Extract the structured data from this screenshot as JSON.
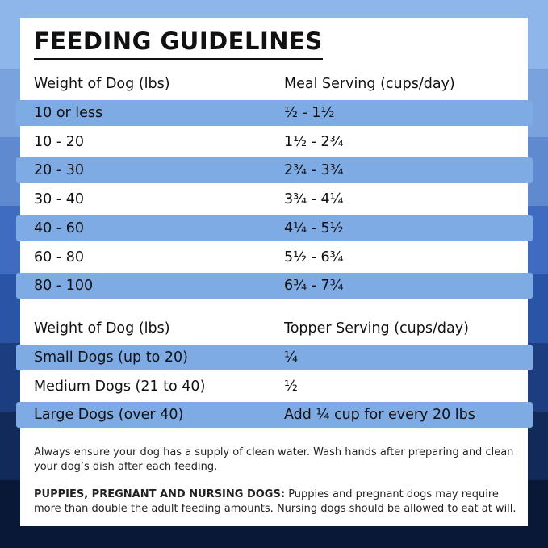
{
  "title": "FEEDING GUIDELINES",
  "meal_table": {
    "headers": [
      "Weight of Dog (lbs)",
      "Meal Serving (cups/day)"
    ],
    "rows": [
      [
        "10 or less",
        "½ - 1½"
      ],
      [
        "10 - 20",
        "1½ - 2¾"
      ],
      [
        "20 - 30",
        "2¾ - 3¾"
      ],
      [
        "30 - 40",
        "3¾ - 4¼"
      ],
      [
        "40 - 60",
        "4¼ - 5½"
      ],
      [
        "60 - 80",
        "5½ - 6¾"
      ],
      [
        "80 - 100",
        "6¾ - 7¾"
      ]
    ]
  },
  "topper_table": {
    "headers": [
      "Weight of Dog (lbs)",
      "Topper Serving (cups/day)"
    ],
    "rows": [
      [
        "Small Dogs (up to 20)",
        "¼"
      ],
      [
        "Medium Dogs (21 to 40)",
        "½"
      ],
      [
        "Large Dogs (over 40)",
        "Add ¼ cup for every 20 lbs"
      ]
    ]
  },
  "note": "Always ensure your dog has a supply of clean water. Wash hands after preparing and clean your dog’s dish after each feeding.",
  "puppies": {
    "label": "PUPPIES, PREGNANT AND NURSING DOGS:",
    "text": "Puppies and pregnant dogs may require more than double the adult feeding amounts. Nursing dogs should be allowed to eat at will."
  }
}
